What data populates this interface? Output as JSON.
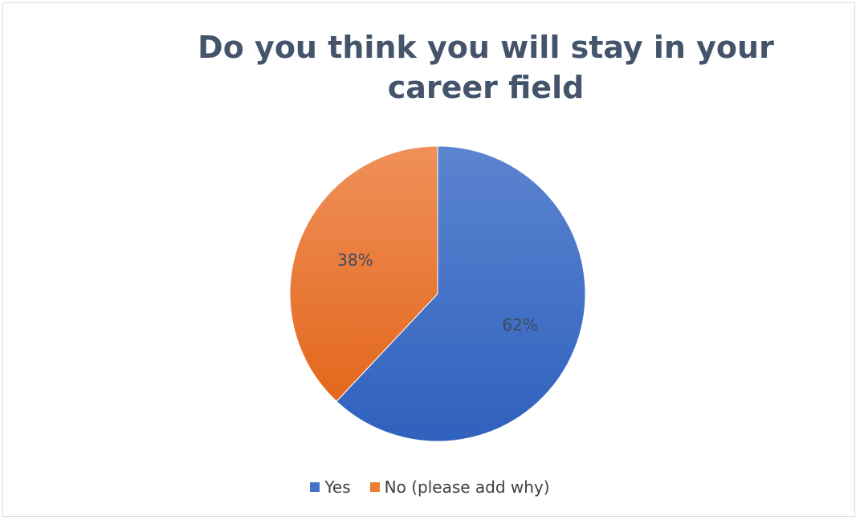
{
  "colors": {
    "yes": "#4472c4",
    "no": "#ed7d31",
    "title": "#44546a"
  },
  "chart_data": {
    "type": "pie",
    "title_lines": [
      "Do you think you will stay in your",
      "career field"
    ],
    "categories": [
      "Yes",
      "No (please add why)"
    ],
    "values": [
      62,
      38
    ],
    "data_labels": [
      "62%",
      "38%"
    ],
    "start_angle_deg": 0,
    "direction": "clockwise",
    "legend_position": "bottom"
  }
}
